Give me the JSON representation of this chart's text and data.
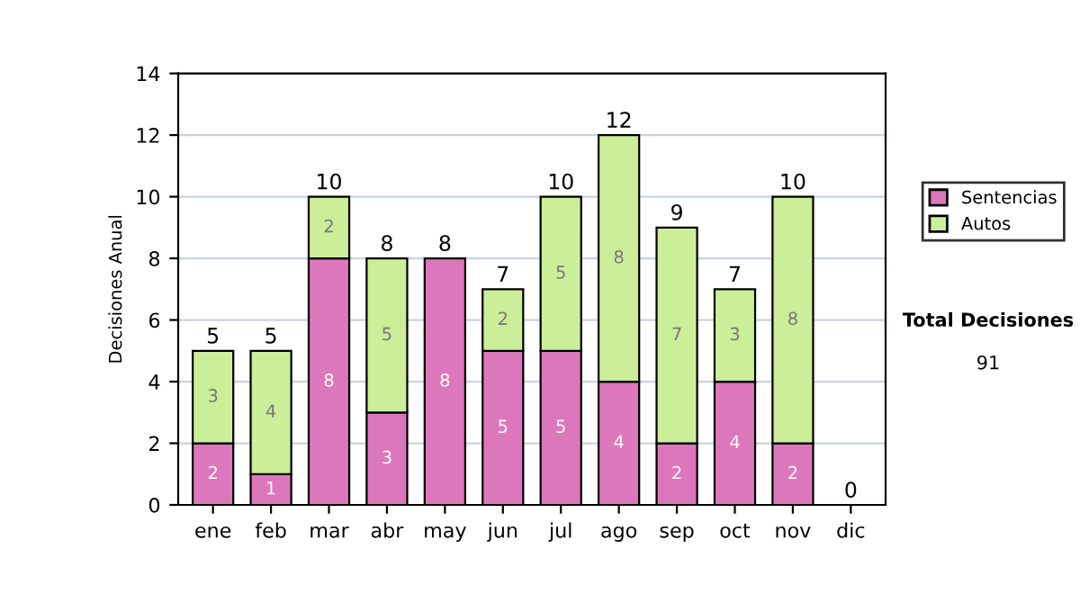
{
  "chart_data": {
    "type": "bar",
    "stacked": true,
    "ylabel": "Decisiones Anual",
    "categories": [
      "ene",
      "feb",
      "mar",
      "abr",
      "may",
      "jun",
      "jul",
      "ago",
      "sep",
      "oct",
      "nov",
      "dic"
    ],
    "series": [
      {
        "name": "Sentencias",
        "color": "#dd77bb",
        "values": [
          2,
          1,
          8,
          3,
          8,
          5,
          5,
          4,
          2,
          4,
          2,
          0
        ],
        "value_labels": [
          "2",
          "1",
          "8",
          "3",
          "8",
          "5",
          "5",
          "4",
          "2",
          "4",
          "2",
          null
        ]
      },
      {
        "name": "Autos",
        "color": "#ccee99",
        "values": [
          3,
          4,
          2,
          5,
          0,
          2,
          5,
          8,
          7,
          3,
          8,
          0
        ],
        "value_labels": [
          "3",
          "4",
          "2",
          "5",
          null,
          "2",
          "5",
          "8",
          "7",
          "3",
          "8",
          null
        ]
      }
    ],
    "totals": [
      "5",
      "5",
      "10",
      "8",
      "8",
      "7",
      "10",
      "12",
      "9",
      "7",
      "10",
      "0"
    ],
    "ylim": [
      0,
      14
    ],
    "yticks": [
      0,
      2,
      4,
      6,
      8,
      10,
      12,
      14
    ],
    "grid": "y",
    "legend": "right",
    "annotations": [
      "Total Decisiones",
      "91"
    ]
  }
}
